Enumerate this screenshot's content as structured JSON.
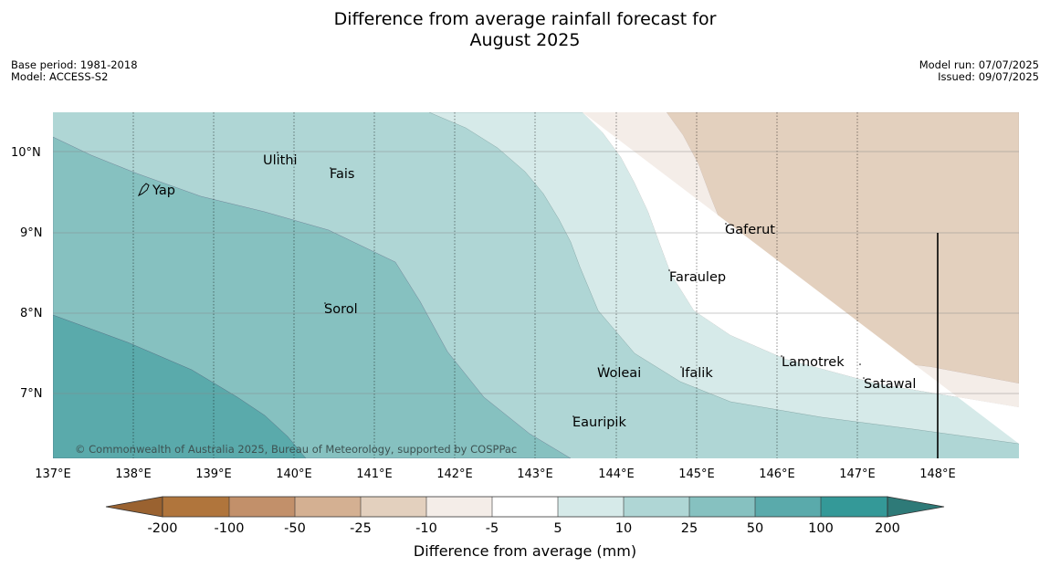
{
  "title": {
    "line1": "Difference from average rainfall forecast for",
    "line2": "August 2025"
  },
  "meta": {
    "base_period": "Base period: 1981-2018",
    "model": "Model: ACCESS-S2",
    "model_run": "Model run: 07/07/2025",
    "issued": "Issued: 09/07/2025"
  },
  "map": {
    "lon_ticks": [
      "137°E",
      "138°E",
      "139°E",
      "140°E",
      "141°E",
      "142°E",
      "143°E",
      "144°E",
      "145°E",
      "146°E",
      "147°E",
      "148°E"
    ],
    "lat_ticks": [
      "10°N",
      "9°N",
      "8°N",
      "7°N"
    ],
    "places": [
      {
        "name": "Ulithi"
      },
      {
        "name": "Fais"
      },
      {
        "name": "Yap"
      },
      {
        "name": "Gaferut"
      },
      {
        "name": "Faraulep"
      },
      {
        "name": "Sorol"
      },
      {
        "name": "Lamotrek"
      },
      {
        "name": "Woleai"
      },
      {
        "name": "Ifalik"
      },
      {
        "name": "Satawal"
      },
      {
        "name": "Eauripik"
      }
    ],
    "copyright": "© Commonwealth of Australia 2025, Bureau of Meteorology, supported by COSPPac"
  },
  "colorbar": {
    "label": "Difference from average (mm)",
    "ticks": [
      "-200",
      "-100",
      "-50",
      "-25",
      "-10",
      "-5",
      "5",
      "10",
      "25",
      "50",
      "100",
      "200"
    ],
    "colors": {
      "lt_-200": "#9a6230",
      "-200_-100": "#b0753c",
      "-100_-50": "#c2906a",
      "-50_-25": "#d4b092",
      "-25_-10": "#e3d0be",
      "-10_-5": "#f4ede8",
      "-5_5": "#ffffff",
      "5_10": "#d6eae9",
      "10_25": "#afd6d5",
      "25_50": "#86c1c0",
      "50_100": "#5aaaab",
      "100_200": "#349998",
      "gt_200": "#2e7a78"
    }
  }
}
